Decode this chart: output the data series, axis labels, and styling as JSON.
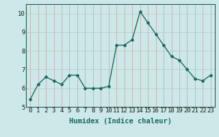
{
  "x": [
    0,
    1,
    2,
    3,
    4,
    5,
    6,
    7,
    8,
    9,
    10,
    11,
    12,
    13,
    14,
    15,
    16,
    17,
    18,
    19,
    20,
    21,
    22,
    23
  ],
  "y": [
    5.4,
    6.2,
    6.6,
    6.4,
    6.2,
    6.7,
    6.7,
    6.0,
    6.0,
    6.0,
    6.1,
    8.3,
    8.3,
    8.6,
    10.1,
    9.5,
    8.9,
    8.3,
    7.7,
    7.5,
    7.0,
    6.5,
    6.4,
    6.7
  ],
  "line_color": "#1a6b5e",
  "marker": "D",
  "marker_size": 2.0,
  "bg_color": "#cce8e8",
  "grid_color_major_v": "#c8a0a0",
  "grid_color_major_h": "#b8c8c8",
  "xlabel": "Humidex (Indice chaleur)",
  "ylim": [
    5,
    10.5
  ],
  "xlim": [
    -0.5,
    23.5
  ],
  "yticks": [
    5,
    6,
    7,
    8,
    9,
    10
  ],
  "xticks": [
    0,
    1,
    2,
    3,
    4,
    5,
    6,
    7,
    8,
    9,
    10,
    11,
    12,
    13,
    14,
    15,
    16,
    17,
    18,
    19,
    20,
    21,
    22,
    23
  ],
  "tick_label_fontsize": 6.5,
  "xlabel_fontsize": 7.5,
  "line_width": 1.0
}
